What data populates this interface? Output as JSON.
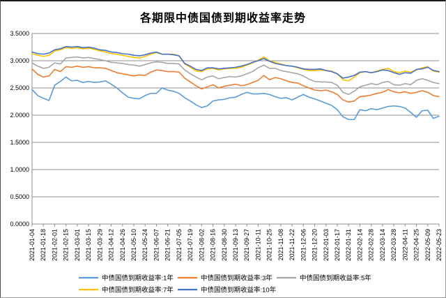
{
  "chart_data": {
    "type": "line",
    "title": "各期限中债国债到期收益率走势",
    "xlabel": "",
    "ylabel": "",
    "ylim": [
      0,
      3.5
    ],
    "y_tick_step": 0.5,
    "y_tick_labels": [
      "0.0000",
      "0.5000",
      "1.0000",
      "1.5000",
      "2.0000",
      "2.5000",
      "3.0000",
      "3.5000"
    ],
    "grid": true,
    "legend_position": "bottom",
    "x_tick_labels": [
      "2021-01-04",
      "2021-01-18",
      "2021-02-01",
      "2021-02-15",
      "2021-03-01",
      "2021-03-15",
      "2021-03-29",
      "2021-04-12",
      "2021-04-26",
      "2021-05-10",
      "2021-05-24",
      "2021-06-07",
      "2021-06-21",
      "2021-07-05",
      "2021-07-19",
      "2021-08-02",
      "2021-08-16",
      "2021-08-30",
      "2021-09-13",
      "2021-09-27",
      "2021-10-11",
      "2021-10-25",
      "2021-11-08",
      "2021-11-22",
      "2021-12-06",
      "2021-12-20",
      "2022-01-03",
      "2022-01-17",
      "2022-01-31",
      "2022-02-14",
      "2022-02-28",
      "2022-03-14",
      "2022-03-28",
      "2022-04-11",
      "2022-04-25",
      "2022-05-09",
      "2022-05-23"
    ],
    "points_per_tick": 2,
    "series": [
      {
        "name": "中债国债到期收益率:1年",
        "color": "#5B9BD5",
        "values": [
          2.47,
          2.36,
          2.31,
          2.27,
          2.55,
          2.62,
          2.7,
          2.63,
          2.64,
          2.6,
          2.62,
          2.6,
          2.61,
          2.63,
          2.57,
          2.5,
          2.41,
          2.33,
          2.31,
          2.3,
          2.36,
          2.4,
          2.4,
          2.5,
          2.46,
          2.44,
          2.4,
          2.32,
          2.26,
          2.19,
          2.14,
          2.17,
          2.26,
          2.28,
          2.29,
          2.32,
          2.33,
          2.38,
          2.42,
          2.39,
          2.39,
          2.4,
          2.38,
          2.34,
          2.31,
          2.32,
          2.28,
          2.33,
          2.38,
          2.33,
          2.3,
          2.26,
          2.22,
          2.18,
          2.1,
          1.97,
          1.92,
          1.92,
          2.1,
          2.08,
          2.12,
          2.1,
          2.13,
          2.16,
          2.17,
          2.16,
          2.13,
          2.05,
          1.96,
          2.08,
          2.09,
          1.94,
          1.98
        ]
      },
      {
        "name": "中债国债到期收益率:3年",
        "color": "#ED7D31",
        "values": [
          2.85,
          2.75,
          2.7,
          2.72,
          2.84,
          2.8,
          2.89,
          2.88,
          2.9,
          2.88,
          2.89,
          2.87,
          2.87,
          2.86,
          2.82,
          2.78,
          2.76,
          2.74,
          2.72,
          2.74,
          2.73,
          2.79,
          2.83,
          2.82,
          2.8,
          2.8,
          2.79,
          2.68,
          2.61,
          2.54,
          2.48,
          2.52,
          2.56,
          2.5,
          2.53,
          2.55,
          2.57,
          2.54,
          2.56,
          2.6,
          2.64,
          2.73,
          2.65,
          2.69,
          2.67,
          2.63,
          2.6,
          2.59,
          2.54,
          2.5,
          2.46,
          2.45,
          2.46,
          2.43,
          2.38,
          2.28,
          2.24,
          2.26,
          2.34,
          2.35,
          2.37,
          2.4,
          2.42,
          2.47,
          2.43,
          2.41,
          2.43,
          2.4,
          2.42,
          2.45,
          2.42,
          2.36,
          2.34
        ]
      },
      {
        "name": "中债国债到期收益率:5年",
        "color": "#A5A5A5",
        "values": [
          2.96,
          2.9,
          2.86,
          2.88,
          2.96,
          2.94,
          3.05,
          3.06,
          3.07,
          3.05,
          3.06,
          3.04,
          3.02,
          3.0,
          2.97,
          2.96,
          2.95,
          2.93,
          2.92,
          2.9,
          2.93,
          2.96,
          2.98,
          2.97,
          2.95,
          2.95,
          2.94,
          2.83,
          2.76,
          2.7,
          2.65,
          2.7,
          2.72,
          2.67,
          2.69,
          2.71,
          2.7,
          2.72,
          2.76,
          2.8,
          2.87,
          2.92,
          2.86,
          2.86,
          2.82,
          2.8,
          2.78,
          2.76,
          2.72,
          2.66,
          2.62,
          2.61,
          2.61,
          2.6,
          2.55,
          2.42,
          2.38,
          2.44,
          2.52,
          2.55,
          2.58,
          2.56,
          2.6,
          2.62,
          2.56,
          2.55,
          2.58,
          2.56,
          2.64,
          2.67,
          2.64,
          2.6,
          2.58
        ]
      },
      {
        "name": "中债国债到期收益率:7年",
        "color": "#FFC000",
        "values": [
          3.13,
          3.1,
          3.08,
          3.1,
          3.18,
          3.2,
          3.24,
          3.23,
          3.24,
          3.22,
          3.23,
          3.21,
          3.18,
          3.16,
          3.13,
          3.12,
          3.1,
          3.08,
          3.06,
          3.05,
          3.08,
          3.12,
          3.15,
          3.12,
          3.12,
          3.12,
          3.09,
          2.94,
          2.88,
          2.81,
          2.8,
          2.85,
          2.86,
          2.83,
          2.85,
          2.86,
          2.86,
          2.88,
          2.92,
          2.96,
          3.01,
          3.07,
          3.0,
          2.97,
          2.94,
          2.91,
          2.9,
          2.87,
          2.84,
          2.82,
          2.82,
          2.83,
          2.82,
          2.81,
          2.76,
          2.65,
          2.63,
          2.7,
          2.78,
          2.8,
          2.78,
          2.81,
          2.84,
          2.86,
          2.8,
          2.78,
          2.81,
          2.79,
          2.83,
          2.87,
          2.89,
          2.81,
          2.79
        ]
      },
      {
        "name": "中债国债到期收益率:10年",
        "color": "#4472C4",
        "values": [
          3.16,
          3.13,
          3.12,
          3.14,
          3.2,
          3.22,
          3.26,
          3.25,
          3.26,
          3.24,
          3.25,
          3.23,
          3.2,
          3.19,
          3.16,
          3.15,
          3.13,
          3.12,
          3.1,
          3.09,
          3.11,
          3.14,
          3.16,
          3.12,
          3.12,
          3.11,
          3.09,
          2.95,
          2.9,
          2.84,
          2.82,
          2.87,
          2.87,
          2.85,
          2.86,
          2.87,
          2.88,
          2.9,
          2.93,
          2.97,
          3.0,
          3.04,
          2.99,
          2.95,
          2.93,
          2.91,
          2.9,
          2.88,
          2.85,
          2.84,
          2.84,
          2.85,
          2.82,
          2.8,
          2.76,
          2.68,
          2.7,
          2.73,
          2.79,
          2.8,
          2.78,
          2.8,
          2.83,
          2.82,
          2.78,
          2.75,
          2.78,
          2.77,
          2.84,
          2.85,
          2.88,
          2.82,
          2.8
        ]
      }
    ]
  }
}
